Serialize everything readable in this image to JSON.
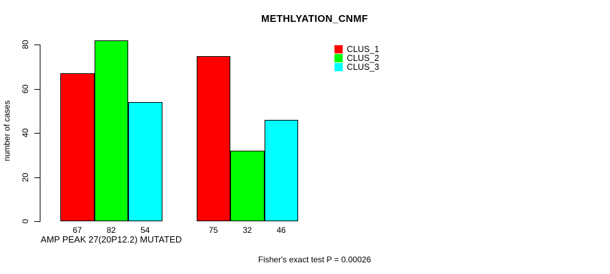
{
  "chart_data": {
    "type": "bar",
    "title": "METHLYATION_CNMF",
    "ylabel": "number of cases",
    "xlabel": "AMP PEAK 27(20P12.2) MUTATED",
    "groups": [
      "AMP PEAK 27(20P12.2) MUTATED",
      ""
    ],
    "series": [
      {
        "name": "CLUS_1",
        "color": "#FF0000",
        "values": [
          67,
          75
        ]
      },
      {
        "name": "CLUS_2",
        "color": "#00FF00",
        "values": [
          82,
          32
        ]
      },
      {
        "name": "CLUS_3",
        "color": "#00FFFF",
        "values": [
          54,
          46
        ]
      }
    ],
    "yticks": [
      0,
      20,
      40,
      60,
      80
    ],
    "ylim": [
      0,
      80
    ],
    "bar_value_labels": true,
    "grid": false,
    "legend_position": "top-right",
    "annotation": "Fisher's exact test P = 0.00026"
  }
}
